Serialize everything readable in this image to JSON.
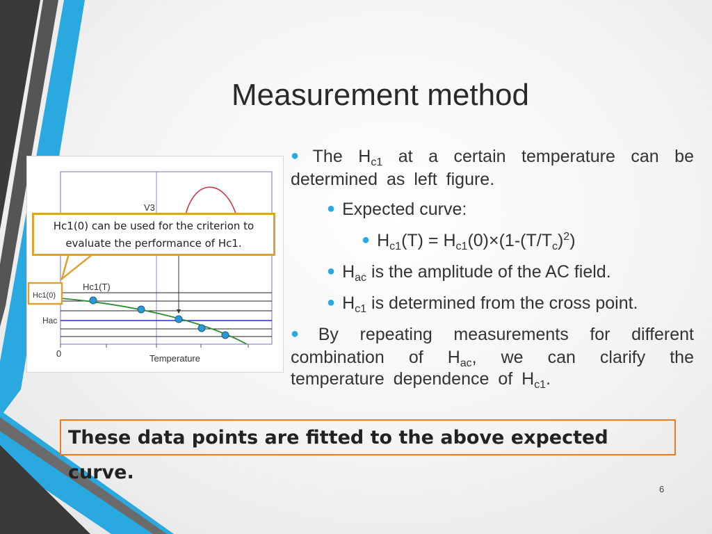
{
  "slide": {
    "title": "Measurement method",
    "page_number": "6"
  },
  "figure": {
    "label_v3": "V3",
    "label_hc1_t": "Hc1(T)",
    "label_hc1_0": "Hc1(0)",
    "label_hac": "Hac",
    "label_zero": "0",
    "label_temperature": "Temperature"
  },
  "callout": {
    "line1": "Hc1(0) can be used for the criterion to",
    "line2": "evaluate the performance of Hc1."
  },
  "bullets": {
    "b1_pre": "The H",
    "b1_sub": "c1",
    "b1_post": " at a certain temperature can be determined as left figure.",
    "b2": "Expected curve:",
    "b3_h1": "H",
    "b3_s1": "c1",
    "b3_m1": "(T) = H",
    "b3_s2": "c1",
    "b3_m2": "(0)×(1-(T/T",
    "b3_s3": "c",
    "b3_m3": ")",
    "b3_sup": "2",
    "b3_end": ")",
    "b4_h": "H",
    "b4_sub": "ac",
    "b4_post": " is the amplitude of the AC field.",
    "b5_h": "H",
    "b5_sub": "c1",
    "b5_post": " is determined from the cross point.",
    "b6_pre": "By repeating measurements for different combination of H",
    "b6_sub": "ac",
    "b6_mid": ", we can clarify the temperature dependence of H",
    "b6_sub2": "c1",
    "b6_end": "."
  },
  "fit_note": "These data points are fitted to the above expected curve.",
  "colors": {
    "accent_blue": "#29a9e0",
    "callout_border": "#e0a030",
    "fit_border": "#f07a20",
    "curve_green": "#2e8b2e",
    "curve_red": "#d0394a",
    "point_blue": "#2a9ad6"
  }
}
